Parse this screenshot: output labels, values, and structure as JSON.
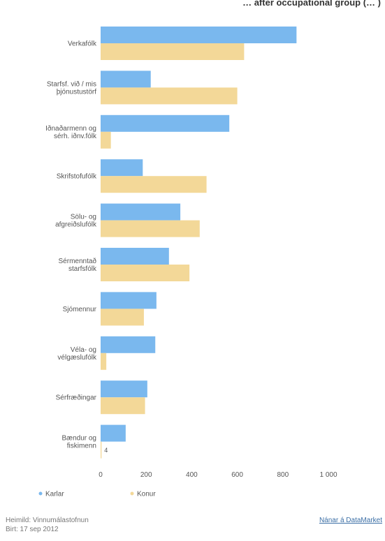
{
  "chart_data": {
    "type": "bar",
    "orientation": "horizontal",
    "title": "… after occupational group (… )",
    "categories": [
      [
        "Verkafólk"
      ],
      [
        "Starfsf. við / mis",
        "þjónustustörf"
      ],
      [
        "Iðnaðarmenn og",
        "sérh. iðnv.fólk"
      ],
      [
        "Skrifstofufólk"
      ],
      [
        "Sölu- og",
        "afgreiðslufólk"
      ],
      [
        "Sérmenntað",
        "starfsfólk"
      ],
      [
        "Sjómennur"
      ],
      [
        "Véla- og",
        "vélgæslufólk"
      ],
      [
        "Sérfræðingar"
      ],
      [
        "Bændur og",
        "fiskimenn"
      ]
    ],
    "series": [
      {
        "name": "Karlar",
        "color": "#7ab8ee",
        "values": [
          860,
          220,
          565,
          185,
          350,
          300,
          245,
          240,
          205,
          110
        ]
      },
      {
        "name": "Konur",
        "color": "#f3d898",
        "values": [
          630,
          600,
          45,
          465,
          435,
          390,
          190,
          25,
          195,
          4
        ]
      }
    ],
    "data_labels": [
      {
        "series": "Konur",
        "category_index": 9,
        "text": "4"
      }
    ],
    "x_ticks": [
      "0",
      "200",
      "400",
      "600",
      "800",
      "1 000"
    ],
    "x_tick_values": [
      0,
      200,
      400,
      600,
      800,
      1000
    ],
    "xlim": [
      0,
      1000
    ],
    "grid": false,
    "legend_position": "bottom-left"
  },
  "footer": {
    "source": "Heimild: Vinnumálastofnun",
    "published": "Birt: 17 sep 2012",
    "credit_link": "Nánar á DataMarket"
  }
}
